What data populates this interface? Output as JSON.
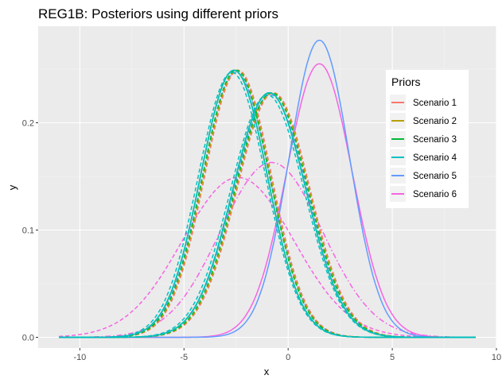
{
  "chart_data": {
    "type": "line",
    "title": "REG1B: Posteriors using different priors",
    "xlabel": "x",
    "ylabel": "y",
    "xlim": [
      -12,
      10
    ],
    "ylim": [
      -0.01,
      0.29
    ],
    "xticks": [
      -10,
      -5,
      0,
      5,
      10
    ],
    "yticks": [
      0.0,
      0.1,
      0.2
    ],
    "xtick_labels": [
      "-10",
      "-5",
      "0",
      "5",
      "10"
    ],
    "ytick_labels": [
      "0.0",
      "0.1",
      "0.2"
    ],
    "grid": true,
    "background": "#ebebeb",
    "legend": {
      "title": "Priors",
      "position": "right",
      "entries": [
        "Scenario 1",
        "Scenario 2",
        "Scenario 3",
        "Scenario 4",
        "Scenario 5",
        "Scenario 6"
      ]
    },
    "x_domain": [
      -11,
      9
    ],
    "series": [
      {
        "name": "Scenario 1",
        "color": "#f8766d",
        "curves": [
          {
            "style": "solid",
            "mean": -2.6,
            "sd": 1.6,
            "peak": 0.249
          },
          {
            "style": "dashed",
            "mean": -2.4,
            "sd": 1.6,
            "peak": 0.249
          },
          {
            "style": "solid",
            "mean": -0.9,
            "sd": 1.75,
            "peak": 0.228
          },
          {
            "style": "dashed",
            "mean": -0.7,
            "sd": 1.75,
            "peak": 0.228
          }
        ]
      },
      {
        "name": "Scenario 2",
        "color": "#b79f00",
        "curves": [
          {
            "style": "solid",
            "mean": -2.6,
            "sd": 1.6,
            "peak": 0.249
          },
          {
            "style": "dashed",
            "mean": -2.45,
            "sd": 1.6,
            "peak": 0.249
          },
          {
            "style": "solid",
            "mean": -0.9,
            "sd": 1.75,
            "peak": 0.228
          },
          {
            "style": "dashed",
            "mean": -0.75,
            "sd": 1.75,
            "peak": 0.228
          }
        ]
      },
      {
        "name": "Scenario 3",
        "color": "#00ba38",
        "curves": [
          {
            "style": "solid",
            "mean": -2.6,
            "sd": 1.6,
            "peak": 0.249
          },
          {
            "style": "dashed",
            "mean": -2.5,
            "sd": 1.6,
            "peak": 0.249
          },
          {
            "style": "solid",
            "mean": -0.9,
            "sd": 1.75,
            "peak": 0.228
          },
          {
            "style": "dashed",
            "mean": -0.8,
            "sd": 1.75,
            "peak": 0.228
          }
        ]
      },
      {
        "name": "Scenario 4",
        "color": "#00bfc4",
        "curves": [
          {
            "style": "solid",
            "mean": -2.6,
            "sd": 1.6,
            "peak": 0.249
          },
          {
            "style": "dashed",
            "mean": -2.7,
            "sd": 1.62,
            "peak": 0.247
          },
          {
            "style": "solid",
            "mean": -0.9,
            "sd": 1.75,
            "peak": 0.228
          },
          {
            "style": "dashed",
            "mean": -1.0,
            "sd": 1.77,
            "peak": 0.226
          }
        ]
      },
      {
        "name": "Scenario 5",
        "color": "#619cff",
        "curves": [
          {
            "style": "solid",
            "mean": 1.5,
            "sd": 1.45,
            "peak": 0.277
          },
          {
            "style": "dashed",
            "mean": -2.5,
            "sd": 1.62,
            "peak": 0.247
          },
          {
            "style": "dashed",
            "mean": -0.85,
            "sd": 1.77,
            "peak": 0.226
          }
        ]
      },
      {
        "name": "Scenario 6",
        "color": "#f564e3",
        "curves": [
          {
            "style": "solid",
            "mean": 1.5,
            "sd": 1.57,
            "peak": 0.255
          },
          {
            "style": "dashed",
            "mean": -2.4,
            "sd": 2.67,
            "peak": 0.149
          },
          {
            "style": "dashdot",
            "mean": -0.8,
            "sd": 2.45,
            "peak": 0.163
          }
        ]
      }
    ]
  }
}
